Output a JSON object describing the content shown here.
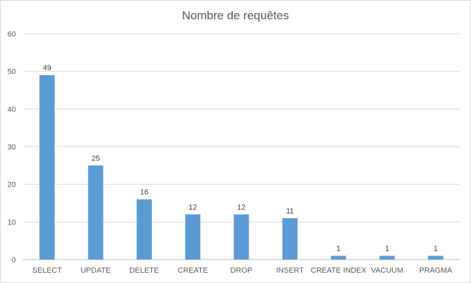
{
  "chart_data": {
    "type": "bar",
    "title": "Nombre de requêtes",
    "xlabel": "",
    "ylabel": "",
    "categories": [
      "SELECT",
      "UPDATE",
      "DELETE",
      "CREATE",
      "DROP",
      "INSERT",
      "CREATE INDEX",
      "VACUUM",
      "PRAGMA"
    ],
    "values": [
      49,
      25,
      16,
      12,
      12,
      11,
      1,
      1,
      1
    ],
    "ylim": [
      0,
      60
    ],
    "yticks": [
      0,
      10,
      20,
      30,
      40,
      50,
      60
    ],
    "grid": "horizontal",
    "data_labels": true,
    "legend": "none",
    "colors": {
      "bar": "#5b9bd5",
      "grid": "#d9d9d9",
      "axis": "#bfbfbf"
    }
  }
}
